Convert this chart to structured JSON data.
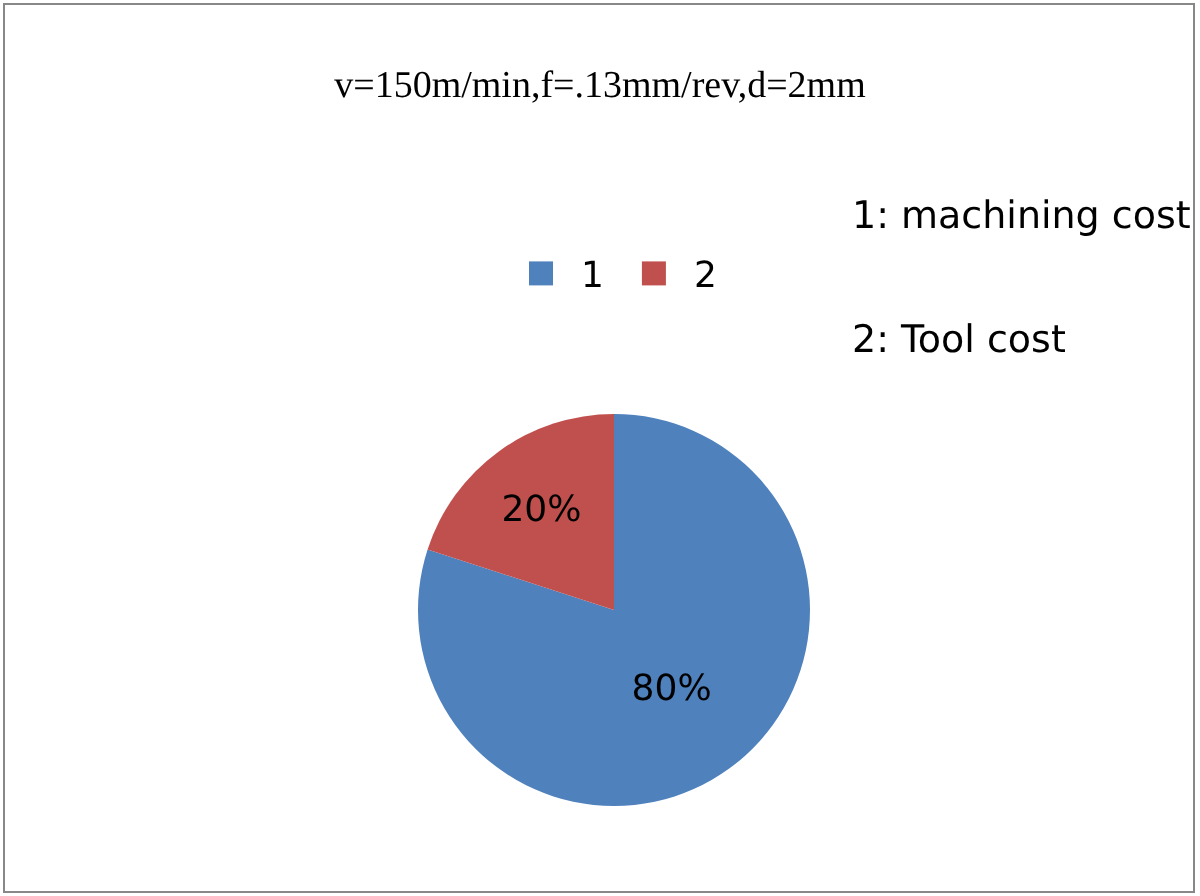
{
  "chart_data": {
    "type": "pie",
    "title": "v=150m/min,f=.13mm/rev,d=2mm",
    "categories": [
      "1",
      "2"
    ],
    "values": [
      80,
      20
    ],
    "value_labels": [
      "80%",
      "20%"
    ],
    "colors": [
      "#4f81bd",
      "#c0504d"
    ],
    "legend": "top",
    "annotations": [
      "1: machining cost",
      "2: Tool cost"
    ]
  }
}
